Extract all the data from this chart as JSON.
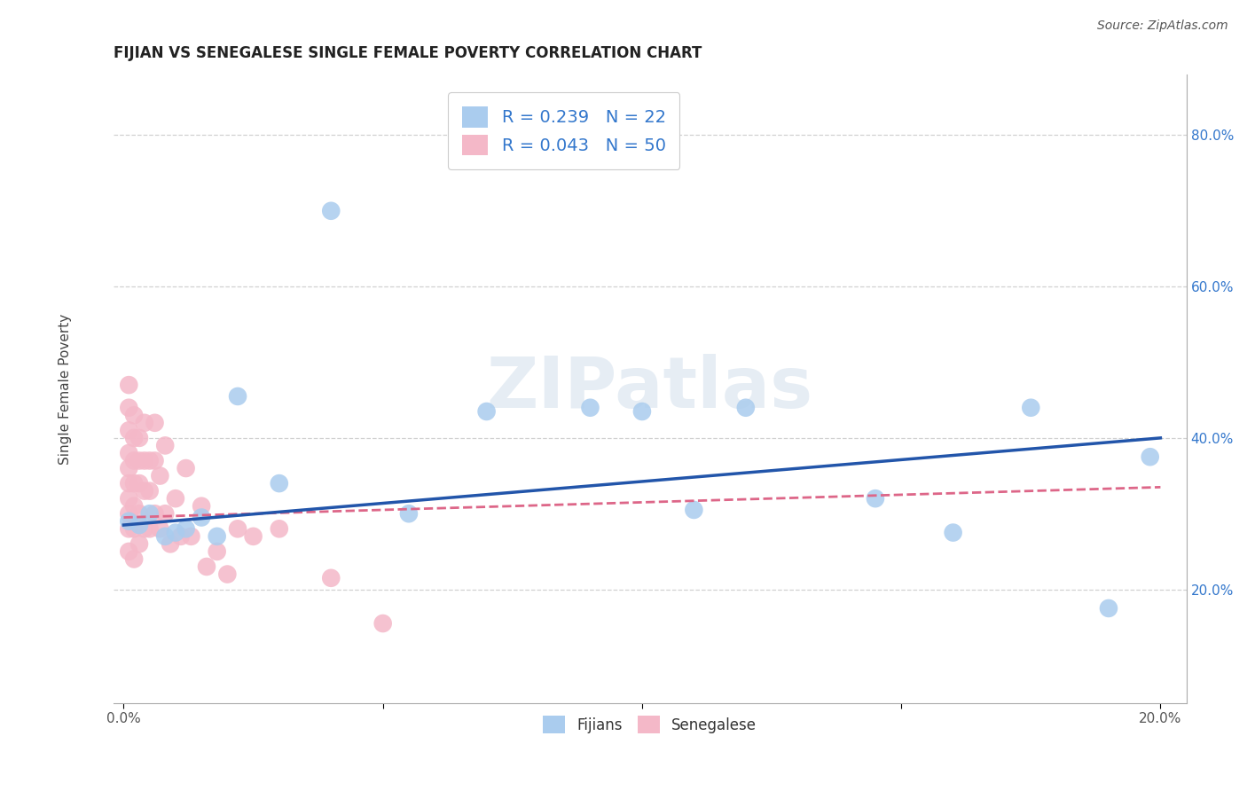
{
  "title": "FIJIAN VS SENEGALESE SINGLE FEMALE POVERTY CORRELATION CHART",
  "source_text": "Source: ZipAtlas.com",
  "ylabel": "Single Female Poverty",
  "xlim": [
    -0.002,
    0.205
  ],
  "ylim": [
    0.05,
    0.88
  ],
  "x_ticks": [
    0.0,
    0.05,
    0.1,
    0.15,
    0.2
  ],
  "x_tick_labels": [
    "0.0%",
    "",
    "",
    "",
    "20.0%"
  ],
  "y_ticks": [
    0.2,
    0.4,
    0.6,
    0.8
  ],
  "y_tick_labels": [
    "20.0%",
    "40.0%",
    "60.0%",
    "80.0%"
  ],
  "fijian_color": "#aaccee",
  "senegalese_color": "#f4b8c8",
  "fijian_R": 0.239,
  "fijian_N": 22,
  "senegalese_R": 0.043,
  "senegalese_N": 50,
  "legend_text_color": "#3377cc",
  "fijians_x": [
    0.001,
    0.003,
    0.005,
    0.008,
    0.01,
    0.012,
    0.015,
    0.018,
    0.022,
    0.03,
    0.04,
    0.055,
    0.07,
    0.09,
    0.1,
    0.11,
    0.12,
    0.145,
    0.16,
    0.175,
    0.19,
    0.198
  ],
  "fijians_y": [
    0.29,
    0.285,
    0.3,
    0.27,
    0.275,
    0.28,
    0.295,
    0.27,
    0.455,
    0.34,
    0.7,
    0.3,
    0.435,
    0.44,
    0.435,
    0.305,
    0.44,
    0.32,
    0.275,
    0.44,
    0.175,
    0.375
  ],
  "senegalese_x": [
    0.001,
    0.001,
    0.001,
    0.001,
    0.001,
    0.001,
    0.001,
    0.001,
    0.001,
    0.001,
    0.002,
    0.002,
    0.002,
    0.002,
    0.002,
    0.002,
    0.002,
    0.003,
    0.003,
    0.003,
    0.003,
    0.003,
    0.004,
    0.004,
    0.004,
    0.004,
    0.005,
    0.005,
    0.005,
    0.006,
    0.006,
    0.006,
    0.007,
    0.007,
    0.008,
    0.008,
    0.009,
    0.01,
    0.011,
    0.012,
    0.013,
    0.015,
    0.016,
    0.018,
    0.02,
    0.022,
    0.025,
    0.03,
    0.04,
    0.05
  ],
  "senegalese_y": [
    0.47,
    0.44,
    0.41,
    0.38,
    0.36,
    0.34,
    0.32,
    0.3,
    0.28,
    0.25,
    0.43,
    0.4,
    0.37,
    0.34,
    0.31,
    0.28,
    0.24,
    0.4,
    0.37,
    0.34,
    0.3,
    0.26,
    0.42,
    0.37,
    0.33,
    0.28,
    0.37,
    0.33,
    0.28,
    0.42,
    0.37,
    0.3,
    0.35,
    0.28,
    0.39,
    0.3,
    0.26,
    0.32,
    0.27,
    0.36,
    0.27,
    0.31,
    0.23,
    0.25,
    0.22,
    0.28,
    0.27,
    0.28,
    0.215,
    0.155
  ],
  "background_color": "#ffffff",
  "grid_color": "#cccccc",
  "title_fontsize": 12,
  "axis_label_fontsize": 11,
  "tick_fontsize": 11,
  "watermark": "ZIPatlas"
}
